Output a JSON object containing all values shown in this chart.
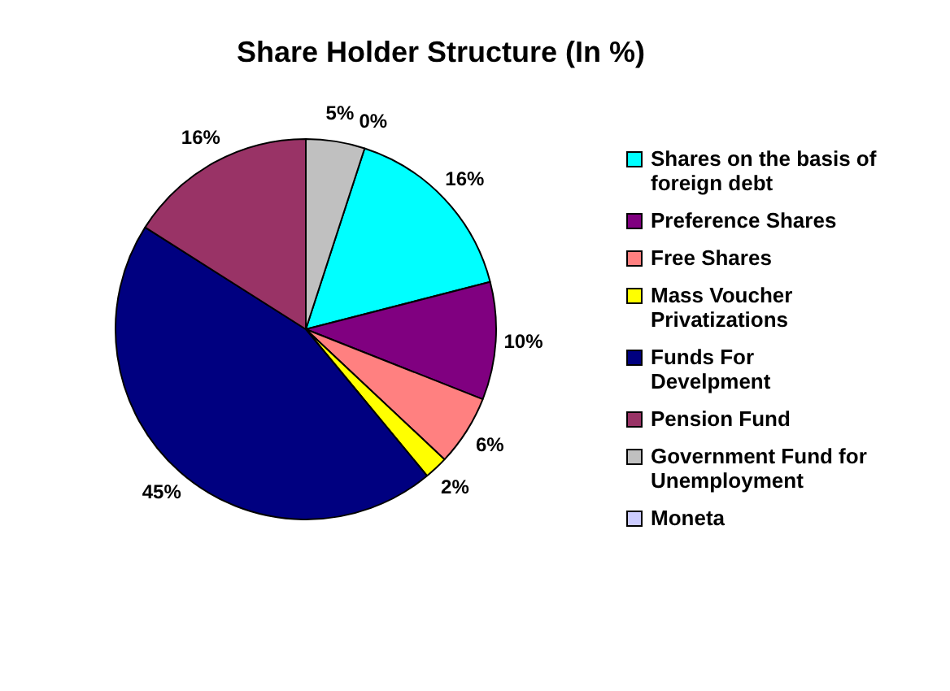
{
  "chart_data": {
    "type": "pie",
    "title": "Share Holder Structure (In %)",
    "categories": [
      "Shares on the basis of foreign debt",
      "Preference Shares",
      "Free Shares",
      "Mass Voucher Privatizations",
      "Funds For Develpment",
      "Pension Fund",
      "Government Fund for Unemployment",
      "Moneta"
    ],
    "values": [
      16,
      10,
      6,
      2,
      45,
      16,
      5,
      0
    ],
    "colors": [
      "#00ffff",
      "#800080",
      "#ff8080",
      "#ffff00",
      "#000080",
      "#993366",
      "#c0c0c0",
      "#ccccff"
    ],
    "value_labels": [
      "16%",
      "10%",
      "6%",
      "2%",
      "45%",
      "16%",
      "5%",
      "0%"
    ],
    "legend": "right"
  }
}
